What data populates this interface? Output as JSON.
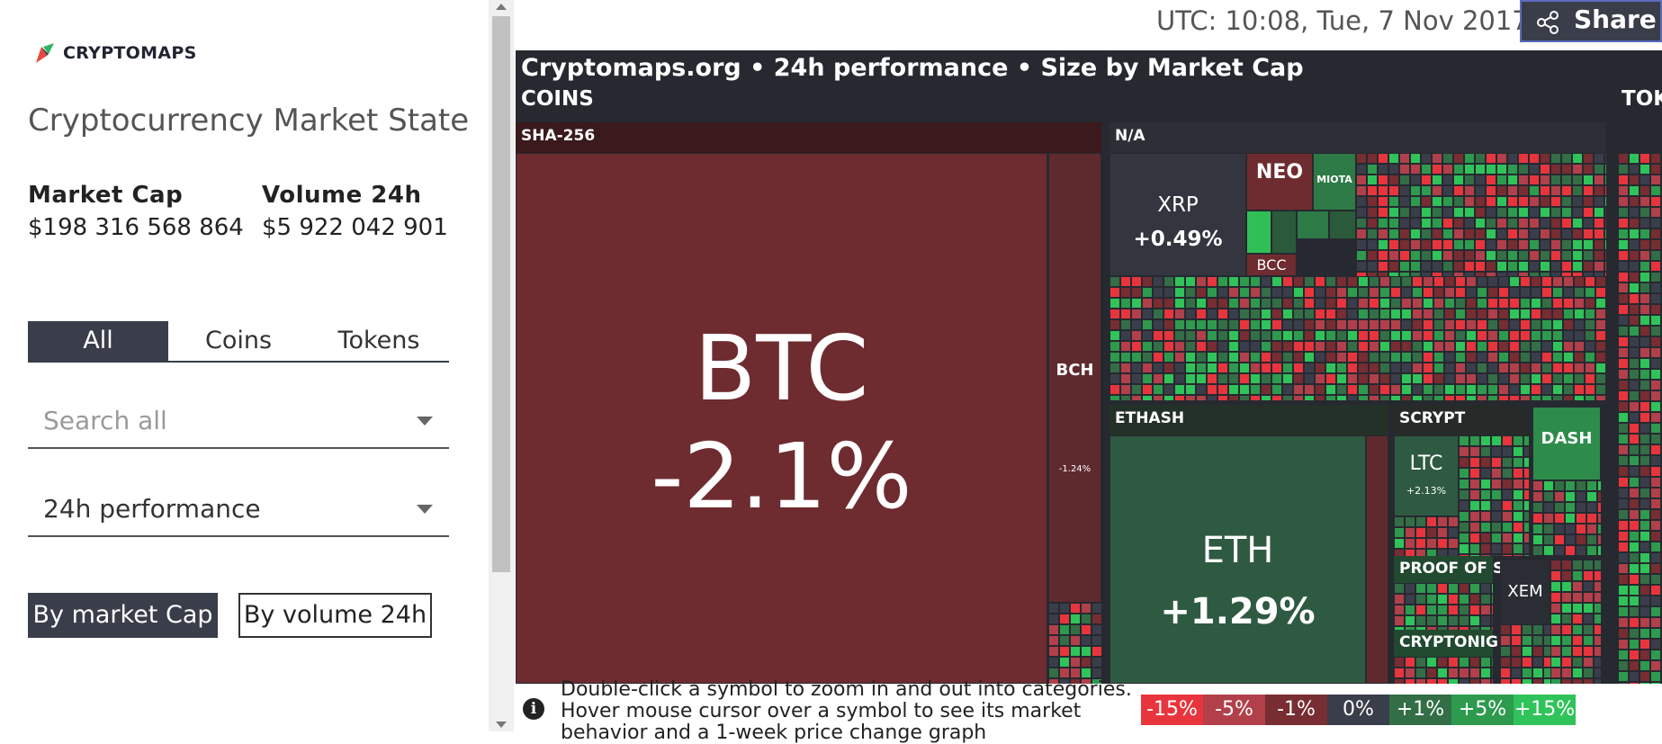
{
  "brand": {
    "name": "CRYPTOMAPS",
    "logo_colors": [
      "#e9493b",
      "#2fb463",
      "#3a3d4a"
    ]
  },
  "sidebar": {
    "title": "Cryptocurrency Market State",
    "stats": [
      {
        "label": "Market Cap",
        "value": "$198 316 568 864"
      },
      {
        "label": "Volume 24h",
        "value": "$5 922 042 901"
      }
    ],
    "tabs": [
      {
        "label": "All",
        "active": true
      },
      {
        "label": "Coins",
        "active": false
      },
      {
        "label": "Tokens",
        "active": false
      }
    ],
    "search": {
      "placeholder": "Search all"
    },
    "metric": {
      "value": "24h performance"
    },
    "size_buttons": [
      {
        "label": "By market Cap",
        "active": true
      },
      {
        "label": "By volume 24h",
        "active": false
      }
    ]
  },
  "header": {
    "utc": "UTC: 10:08, Tue, 7 Nov 2017",
    "share_label": "Share"
  },
  "map": {
    "title": "Cryptomaps.org • 24h performance • Size by Market Cap",
    "sections": [
      {
        "label": "COINS"
      },
      {
        "label": "TOK"
      }
    ],
    "groups": [
      "SHA-256",
      "N/A",
      "ETHASH",
      "SCRYPT",
      "PROOF OF S",
      "CRYPTONIG"
    ],
    "tiles": [
      {
        "symbol": "BTC",
        "change": "-2.1%",
        "color": "#6e2c30"
      },
      {
        "symbol": "BCH",
        "change": "-1.24%",
        "color": "#5f2a2e"
      },
      {
        "symbol": "XRP",
        "change": "+0.49%",
        "color": "#33363f"
      },
      {
        "symbol": "NEO",
        "change": "",
        "color": "#6e2c30"
      },
      {
        "symbol": "MIOTA",
        "change": "",
        "color": "#2d7a46"
      },
      {
        "symbol": "BCC",
        "change": "",
        "color": "#6e2c30"
      },
      {
        "symbol": "ETH",
        "change": "+1.29%",
        "color": "#2f5a42"
      },
      {
        "symbol": "LTC",
        "change": "+2.13%",
        "color": "#2f5a42"
      },
      {
        "symbol": "DASH",
        "change": "",
        "color": "#2d8c4a"
      },
      {
        "symbol": "XEM",
        "change": "",
        "color": "#2a2d34"
      }
    ]
  },
  "footer": {
    "hint_lines": [
      "Double-click a symbol to zoom in and out into categories.",
      "Hover mouse cursor over a symbol to see its market",
      "behavior and a 1-week price change graph"
    ],
    "legend": [
      {
        "label": "-15%",
        "color": "#e8353d"
      },
      {
        "label": "-5%",
        "color": "#b1404a"
      },
      {
        "label": "-1%",
        "color": "#772d31"
      },
      {
        "label": "0%",
        "color": "#3a3d4a"
      },
      {
        "label": "+1%",
        "color": "#336e46"
      },
      {
        "label": "+5%",
        "color": "#2e9a4e"
      },
      {
        "label": "+15%",
        "color": "#30c35a"
      }
    ]
  }
}
